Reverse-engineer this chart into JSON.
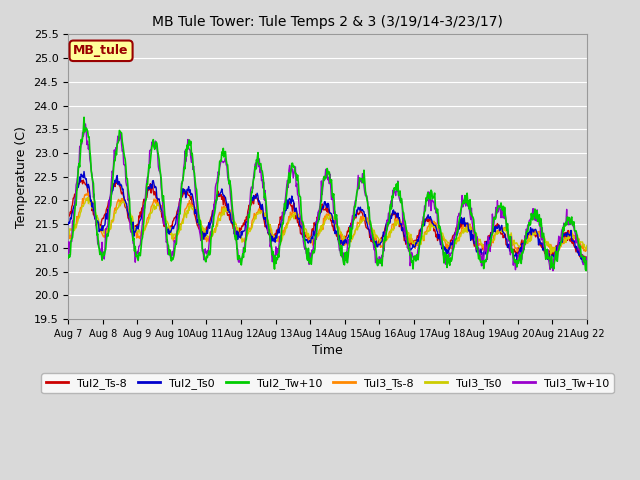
{
  "title": "MB Tule Tower: Tule Temps 2 & 3 (3/19/14-3/23/17)",
  "xlabel": "Time",
  "ylabel": "Temperature (C)",
  "ylim": [
    19.5,
    25.5
  ],
  "yticks": [
    19.5,
    20.0,
    20.5,
    21.0,
    21.5,
    22.0,
    22.5,
    23.0,
    23.5,
    24.0,
    24.5,
    25.0,
    25.5
  ],
  "xtick_labels": [
    "Aug 7",
    "Aug 8",
    "Aug 9",
    "Aug 10",
    "Aug 11",
    "Aug 12",
    "Aug 13",
    "Aug 14",
    "Aug 15",
    "Aug 16",
    "Aug 17",
    "Aug 18",
    "Aug 19",
    "Aug 20",
    "Aug 21",
    "Aug 22"
  ],
  "background_color": "#d9d9d9",
  "plot_bg_color": "#d9d9d9",
  "grid_color": "#ffffff",
  "legend_label": "MB_tule",
  "legend_bg": "#ffff99",
  "legend_border": "#990000",
  "series": {
    "Tul2_Ts-8": {
      "color": "#cc0000",
      "lw": 1.0
    },
    "Tul2_Ts0": {
      "color": "#0000cc",
      "lw": 1.0
    },
    "Tul2_Tw+10": {
      "color": "#00cc00",
      "lw": 1.2
    },
    "Tul3_Ts-8": {
      "color": "#ff8800",
      "lw": 1.0
    },
    "Tul3_Ts0": {
      "color": "#cccc00",
      "lw": 1.0
    },
    "Tul3_Tw+10": {
      "color": "#9900cc",
      "lw": 1.0
    }
  }
}
